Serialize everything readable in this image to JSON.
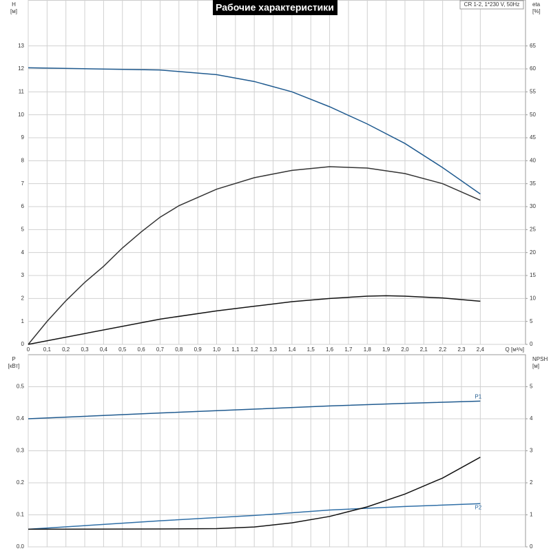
{
  "chart_data": [
    {
      "type": "line",
      "title": "Рабочие характеристики",
      "subtitle": "CR 1-2, 1*230 V, 50Hz",
      "y_label": [
        "H",
        "[м]"
      ],
      "y2_label": [
        "eta",
        "[%]"
      ],
      "x_label": "Q [м³/ч]",
      "xlim": [
        0,
        2.64
      ],
      "xticks": [
        0,
        {
          "value": 0.1,
          "label": "0,1"
        },
        {
          "value": 0.2,
          "label": "0,2"
        },
        {
          "value": 0.3,
          "label": "0,3"
        },
        {
          "value": 0.4,
          "label": "0,4"
        },
        {
          "value": 0.5,
          "label": "0,5"
        },
        {
          "value": 0.6,
          "label": "0,6"
        },
        {
          "value": 0.7,
          "label": "0,7"
        },
        {
          "value": 0.8,
          "label": "0,8"
        },
        {
          "value": 0.9,
          "label": "0,9"
        },
        {
          "value": 1.0,
          "label": "1,0"
        },
        {
          "value": 1.1,
          "label": "1,1"
        },
        {
          "value": 1.2,
          "label": "1,2"
        },
        {
          "value": 1.3,
          "label": "1,3"
        },
        {
          "value": 1.4,
          "label": "1,4"
        },
        {
          "value": 1.5,
          "label": "1,5"
        },
        {
          "value": 1.6,
          "label": "1,6"
        },
        {
          "value": 1.7,
          "label": "1,7"
        },
        {
          "value": 1.8,
          "label": "1,8"
        },
        {
          "value": 1.9,
          "label": "1,9"
        },
        {
          "value": 2.0,
          "label": "2,0"
        },
        {
          "value": 2.1,
          "label": "2,1"
        },
        {
          "value": 2.2,
          "label": "2,2"
        },
        {
          "value": 2.3,
          "label": "2,3"
        },
        {
          "value": 2.4,
          "label": "2,4"
        }
      ],
      "ylim": [
        0,
        15
      ],
      "yticks": [
        0,
        1,
        2,
        3,
        4,
        5,
        6,
        7,
        8,
        9,
        10,
        11,
        12,
        13
      ],
      "y2lim": [
        0,
        75
      ],
      "y2ticks": [
        0,
        5,
        10,
        15,
        20,
        25,
        30,
        35,
        40,
        45,
        50,
        55,
        60,
        65
      ],
      "grid": true,
      "series": [
        {
          "color": "#1f5a8f",
          "x": [
            0,
            0.7,
            1.0,
            1.2,
            1.4,
            1.6,
            1.8,
            2.0,
            2.2,
            2.4
          ],
          "values": [
            12.05,
            11.95,
            11.75,
            11.45,
            11.0,
            10.35,
            9.6,
            8.75,
            7.7,
            6.55
          ]
        },
        {
          "color": "#333333",
          "axis": "y2",
          "x": [
            0,
            0.1,
            0.2,
            0.3,
            0.4,
            0.5,
            0.6,
            0.7,
            0.8,
            1.0,
            1.2,
            1.4,
            1.6,
            1.8,
            2.0,
            2.2,
            2.4
          ],
          "values": [
            0,
            5,
            9.5,
            13.5,
            17,
            21,
            24.5,
            27.7,
            30.2,
            33.8,
            36.3,
            37.9,
            38.7,
            38.4,
            37.2,
            35,
            31.4
          ]
        },
        {
          "color": "#111111",
          "axis": "y2",
          "x": [
            0,
            0.7,
            1.0,
            1.2,
            1.4,
            1.6,
            1.8,
            1.9,
            2.0,
            2.2,
            2.4
          ],
          "values": [
            0,
            5.5,
            7.3,
            8.3,
            9.3,
            10.0,
            10.5,
            10.6,
            10.5,
            10.1,
            9.4
          ]
        }
      ]
    },
    {
      "type": "line",
      "y_label": [
        "P",
        "[кВт]"
      ],
      "y2_label": [
        "NPSH",
        "[м]"
      ],
      "xlim": [
        0,
        2.64
      ],
      "ylim": [
        0,
        0.6
      ],
      "yticks": [
        {
          "value": 0,
          "label": "0.0"
        },
        0.1,
        0.2,
        0.3,
        0.4,
        0.5
      ],
      "y2lim": [
        0,
        6
      ],
      "y2ticks": [
        0,
        1,
        2,
        3,
        4,
        5
      ],
      "grid": true,
      "series": [
        {
          "name": "P1",
          "color": "#1f5a8f",
          "x": [
            0,
            0.7,
            1.2,
            1.6,
            2.0,
            2.4
          ],
          "values": [
            0.4,
            0.418,
            0.43,
            0.44,
            0.448,
            0.455
          ]
        },
        {
          "name": "P2",
          "color": "#2e6ea6",
          "x": [
            0,
            0.7,
            1.2,
            1.6,
            2.0,
            2.4
          ],
          "values": [
            0.055,
            0.0815,
            0.098,
            0.115,
            0.126,
            0.135
          ]
        },
        {
          "color": "#111111",
          "axis": "y2",
          "x": [
            0,
            0.7,
            1.0,
            1.2,
            1.4,
            1.6,
            1.8,
            2.0,
            2.2,
            2.4
          ],
          "values": [
            0.55,
            0.56,
            0.57,
            0.62,
            0.75,
            0.95,
            1.25,
            1.65,
            2.15,
            2.8
          ]
        }
      ]
    }
  ]
}
